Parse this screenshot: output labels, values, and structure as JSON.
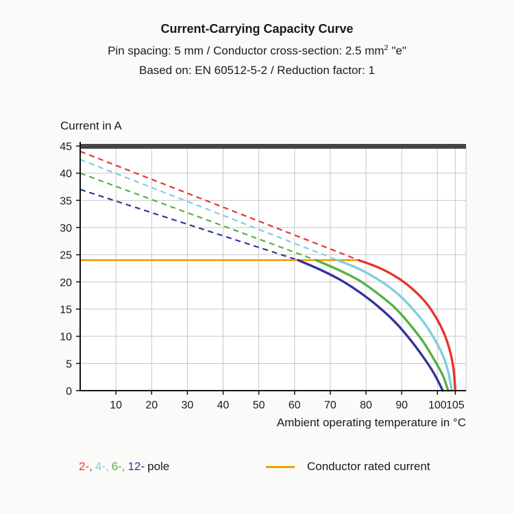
{
  "header": {
    "title": "Current-Carrying Capacity Curve",
    "subtitle1_pre": "Pin spacing: 5 mm / Conductor cross-section: 2.5 mm",
    "subtitle1_sup": "2",
    "subtitle1_post": " \"e\"",
    "subtitle2": "Based on: EN 60512-5-2 / Reduction factor: 1"
  },
  "chart_data": {
    "type": "line",
    "title": "Current-Carrying Capacity Curve",
    "ylabel": "Current in A",
    "xlabel": "Ambient operating temperature in °C",
    "xlim": [
      0,
      108
    ],
    "ylim": [
      0,
      45
    ],
    "xticks": [
      10,
      20,
      30,
      40,
      50,
      60,
      70,
      80,
      90,
      100,
      105
    ],
    "yticks": [
      0,
      5,
      10,
      15,
      20,
      25,
      30,
      35,
      40,
      45
    ],
    "grid": true,
    "grid_color": "#c7c7c7",
    "top_bar_color": "#454545",
    "rated_line": {
      "label": "Conductor rated current",
      "value": 24,
      "x_start": 0,
      "x_end": 78,
      "color": "#f59b00"
    },
    "series": [
      {
        "name": "12-pole",
        "color": "#33339b",
        "dashed": [
          [
            0,
            37
          ],
          [
            61,
            24
          ]
        ],
        "solid": [
          [
            61,
            24
          ],
          [
            67,
            22.3
          ],
          [
            73,
            20.3
          ],
          [
            78,
            18.2
          ],
          [
            83,
            15.7
          ],
          [
            88,
            12.7
          ],
          [
            92,
            9.7
          ],
          [
            96,
            6.2
          ],
          [
            99,
            3.2
          ],
          [
            101.5,
            0
          ]
        ]
      },
      {
        "name": "6-pole",
        "color": "#55b043",
        "dashed": [
          [
            0,
            40
          ],
          [
            66,
            24
          ]
        ],
        "solid": [
          [
            66,
            24
          ],
          [
            72,
            22.3
          ],
          [
            78,
            20.3
          ],
          [
            83,
            18
          ],
          [
            88,
            15.3
          ],
          [
            92,
            12.4
          ],
          [
            96,
            9
          ],
          [
            99,
            5.8
          ],
          [
            101.5,
            2.8
          ],
          [
            103,
            0
          ]
        ]
      },
      {
        "name": "4-pole",
        "color": "#7dcfdc",
        "dashed": [
          [
            0,
            42.5
          ],
          [
            72,
            24
          ]
        ],
        "solid": [
          [
            72,
            24
          ],
          [
            78,
            22.4
          ],
          [
            83,
            20.6
          ],
          [
            88,
            18.3
          ],
          [
            92,
            15.8
          ],
          [
            96,
            12.7
          ],
          [
            99,
            9.7
          ],
          [
            101.5,
            6.5
          ],
          [
            103,
            3.5
          ],
          [
            104,
            0
          ]
        ]
      },
      {
        "name": "2-pole",
        "color": "#e5352b",
        "dashed": [
          [
            0,
            44
          ],
          [
            78,
            24
          ]
        ],
        "solid": [
          [
            78,
            24
          ],
          [
            84,
            22.5
          ],
          [
            89,
            20.7
          ],
          [
            93,
            18.7
          ],
          [
            97,
            16
          ],
          [
            100,
            13
          ],
          [
            102,
            10.3
          ],
          [
            103.5,
            7.3
          ],
          [
            104.5,
            4
          ],
          [
            105,
            0
          ]
        ]
      }
    ]
  },
  "legend": {
    "poles": [
      {
        "label": "2-,",
        "color": "#e5352b"
      },
      {
        "label": "4-,",
        "color": "#7dcfdc"
      },
      {
        "label": "6-,",
        "color": "#55b043"
      },
      {
        "label": "12-",
        "color": "#33339b"
      }
    ],
    "pole_suffix": "pole",
    "rated_label": "Conductor rated current"
  }
}
